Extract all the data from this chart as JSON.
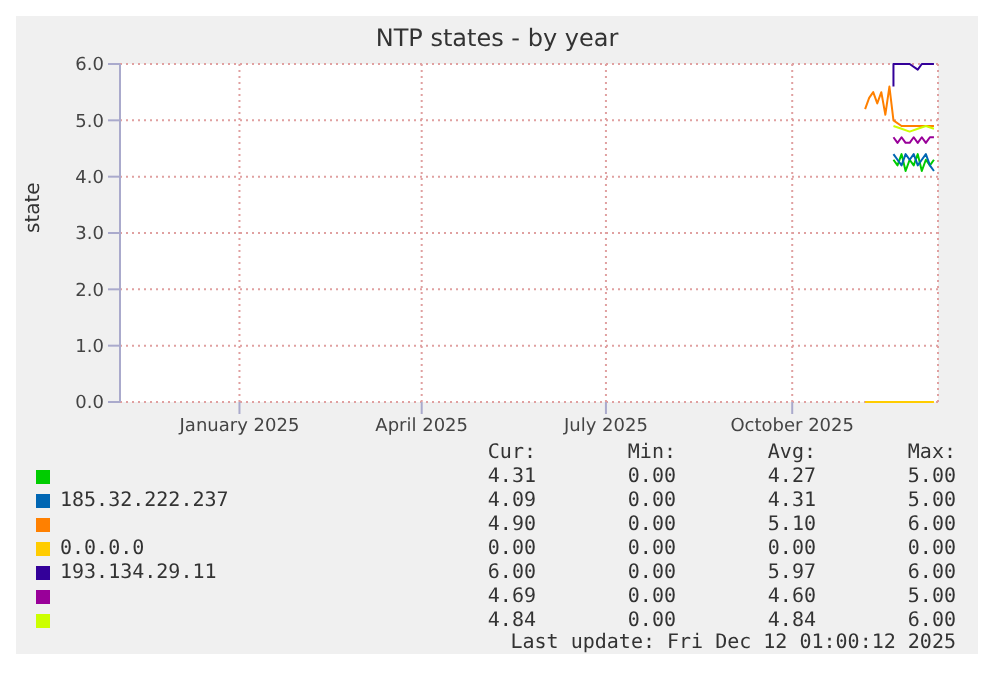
{
  "chart_data": {
    "type": "line",
    "title": "NTP states - by year",
    "ylabel": "state",
    "xlim": [
      "2024-11-03",
      "2025-12-12"
    ],
    "xticks": [
      {
        "value": "2025-01-01",
        "label": "January 2025"
      },
      {
        "value": "2025-04-01",
        "label": "April 2025"
      },
      {
        "value": "2025-07-01",
        "label": "July 2025"
      },
      {
        "value": "2025-10-01",
        "label": "October 2025"
      }
    ],
    "ylim": [
      0,
      6
    ],
    "yticks": [
      {
        "value": 0,
        "label": "0.0"
      },
      {
        "value": 1,
        "label": "1.0"
      },
      {
        "value": 2,
        "label": "2.0"
      },
      {
        "value": 3,
        "label": "3.0"
      },
      {
        "value": 4,
        "label": "4.0"
      },
      {
        "value": 5,
        "label": "5.0"
      },
      {
        "value": 6,
        "label": "6.0"
      }
    ],
    "grid": true,
    "legend": "bottom",
    "series": [
      {
        "name": null,
        "color": "#00cc00",
        "x": [
          "2025-11-20",
          "2025-11-22",
          "2025-11-24",
          "2025-11-26",
          "2025-11-28",
          "2025-11-30",
          "2025-12-02",
          "2025-12-04",
          "2025-12-06",
          "2025-12-08",
          "2025-12-10"
        ],
        "values": [
          4.3,
          4.2,
          4.4,
          4.1,
          4.3,
          4.2,
          4.4,
          4.1,
          4.3,
          4.2,
          4.3
        ]
      },
      {
        "name": "185.32.222.237",
        "color": "#0066b3",
        "x": [
          "2025-11-20",
          "2025-11-22",
          "2025-11-24",
          "2025-11-26",
          "2025-11-28",
          "2025-11-30",
          "2025-12-02",
          "2025-12-04",
          "2025-12-06",
          "2025-12-08",
          "2025-12-10"
        ],
        "values": [
          4.4,
          4.3,
          4.2,
          4.4,
          4.3,
          4.4,
          4.2,
          4.3,
          4.4,
          4.2,
          4.1
        ]
      },
      {
        "name": null,
        "color": "#ff8000",
        "x": [
          "2025-11-06",
          "2025-11-08",
          "2025-11-10",
          "2025-11-12",
          "2025-11-14",
          "2025-11-16",
          "2025-11-18",
          "2025-11-20",
          "2025-11-24",
          "2025-11-30",
          "2025-12-06",
          "2025-12-10"
        ],
        "values": [
          5.2,
          5.4,
          5.5,
          5.3,
          5.5,
          5.1,
          5.6,
          5.0,
          4.9,
          4.9,
          4.9,
          4.9
        ]
      },
      {
        "name": "0.0.0.0",
        "color": "#ffcc00",
        "x": [
          "2025-11-06",
          "2025-12-10"
        ],
        "values": [
          0,
          0
        ]
      },
      {
        "name": "193.134.29.11",
        "color": "#330099",
        "x": [
          "2025-11-20",
          "2025-11-20",
          "2025-11-24",
          "2025-11-28",
          "2025-12-02",
          "2025-12-04",
          "2025-12-06",
          "2025-12-10"
        ],
        "values": [
          5.6,
          6.0,
          6.0,
          6.0,
          5.9,
          6.0,
          6.0,
          6.0
        ]
      },
      {
        "name": null,
        "color": "#990099",
        "x": [
          "2025-11-20",
          "2025-11-22",
          "2025-11-24",
          "2025-11-26",
          "2025-11-28",
          "2025-11-30",
          "2025-12-02",
          "2025-12-04",
          "2025-12-06",
          "2025-12-08",
          "2025-12-10"
        ],
        "values": [
          4.7,
          4.6,
          4.7,
          4.6,
          4.6,
          4.7,
          4.6,
          4.7,
          4.6,
          4.7,
          4.7
        ]
      },
      {
        "name": null,
        "color": "#ccff00",
        "x": [
          "2025-11-20",
          "2025-11-24",
          "2025-11-28",
          "2025-12-02",
          "2025-12-06",
          "2025-12-10"
        ],
        "values": [
          4.9,
          4.85,
          4.8,
          4.85,
          4.9,
          4.85
        ]
      }
    ],
    "annotations": [
      "Cur:",
      "Min:",
      "Avg:",
      "Max:",
      "4.31",
      "0.00",
      "4.27",
      "5.00",
      "4.09",
      "0.00",
      "4.31",
      "5.00",
      "4.90",
      "0.00",
      "5.10",
      "6.00",
      "0.00",
      "0.00",
      "0.00",
      "0.00",
      "6.00",
      "0.00",
      "5.97",
      "6.00",
      "4.69",
      "0.00",
      "4.60",
      "5.00",
      "4.84",
      "0.00",
      "4.84",
      "6.00",
      "Last update: Fri Dec 12 01:00:12 2025"
    ]
  }
}
